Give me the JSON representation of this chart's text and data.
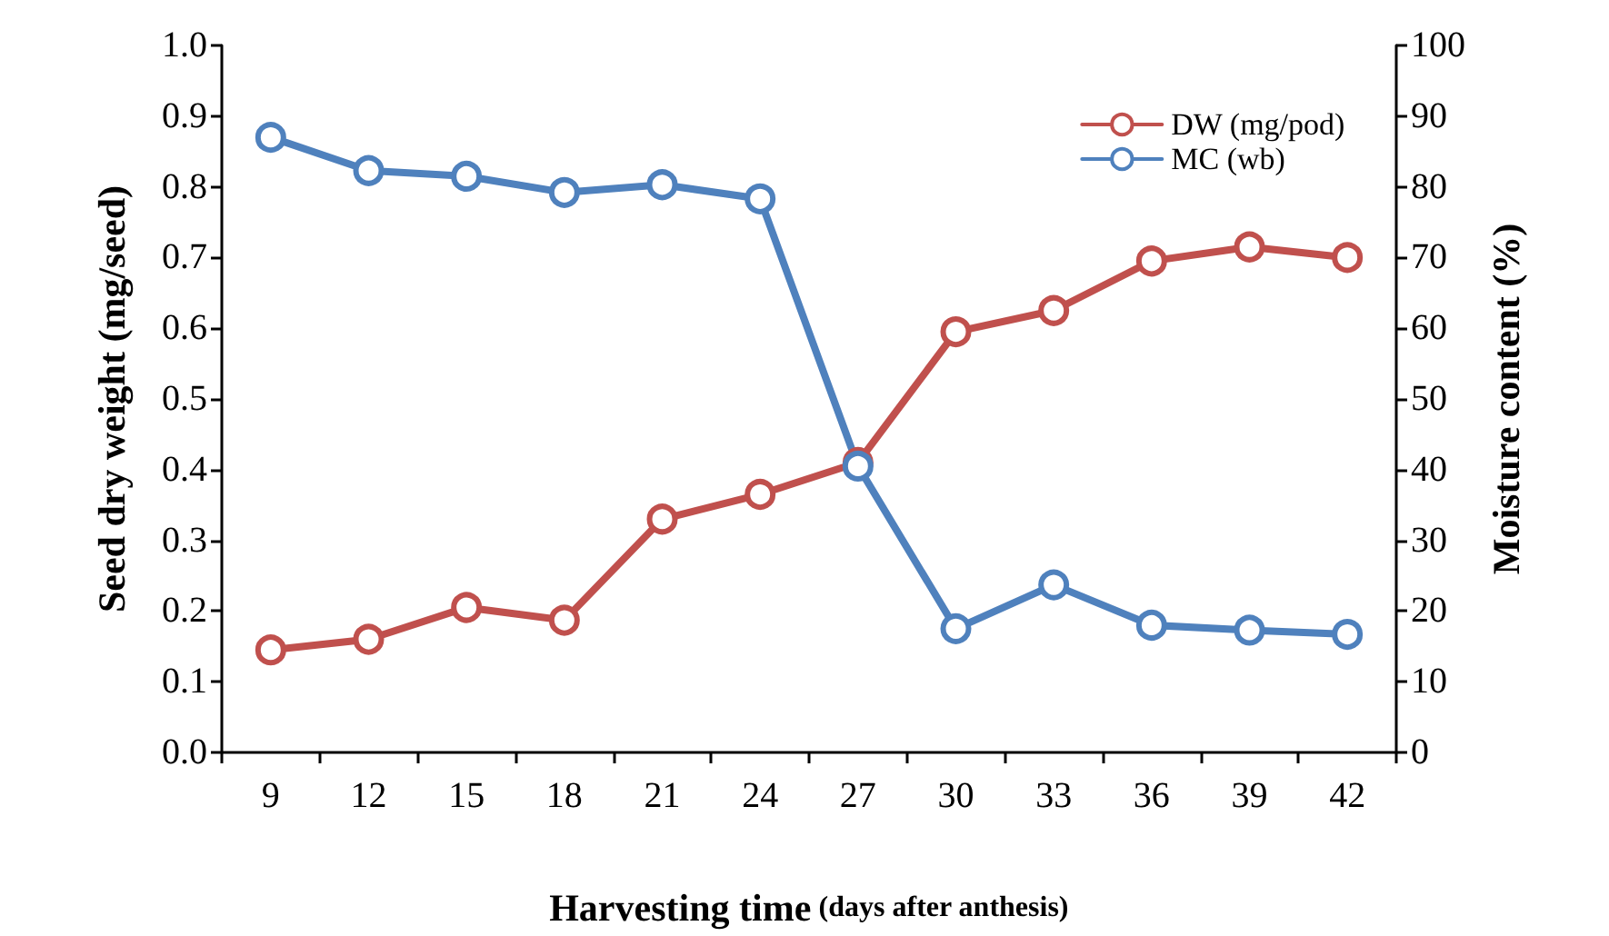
{
  "chart_data": {
    "type": "line",
    "xlabel": "Harvesting time (days after anthesis)",
    "ylabel": "Seed dry weight (mg/seed)",
    "y2label": "Moisture content (%)",
    "categories": [
      "9",
      "12",
      "15",
      "18",
      "21",
      "24",
      "27",
      "30",
      "33",
      "36",
      "39",
      "42"
    ],
    "series": [
      {
        "name": "DW (mg/pod)",
        "color": "#c0504d",
        "values": [
          0.145,
          0.16,
          0.205,
          0.187,
          0.33,
          0.365,
          0.41,
          0.595,
          0.625,
          0.695,
          0.715,
          0.7
        ]
      },
      {
        "name": "MC (wb)",
        "color": "#4f81bd",
        "axis": "y2",
        "values": [
          87,
          82.3,
          81.5,
          79.2,
          80.3,
          78.3,
          40.5,
          17.5,
          23.7,
          18,
          17.3,
          16.7
        ]
      }
    ],
    "ylim": [
      0,
      1
    ],
    "yticks": [
      {
        "value": 0,
        "label": "0.0"
      },
      {
        "value": 0.1,
        "label": "0.1"
      },
      {
        "value": 0.2,
        "label": "0.2"
      },
      {
        "value": 0.3,
        "label": "0.3"
      },
      {
        "value": 0.4,
        "label": "0.4"
      },
      {
        "value": 0.5,
        "label": "0.5"
      },
      {
        "value": 0.6,
        "label": "0.6"
      },
      {
        "value": 0.7,
        "label": "0.7"
      },
      {
        "value": 0.8,
        "label": "0.8"
      },
      {
        "value": 0.9,
        "label": "0.9"
      },
      {
        "value": 1,
        "label": "1.0"
      }
    ],
    "y2lim": [
      0,
      100
    ],
    "y2ticks": [
      0,
      10,
      20,
      30,
      40,
      50,
      60,
      70,
      80,
      90,
      100
    ],
    "grid": false,
    "legend": "top right",
    "marker": "circle",
    "line_style": "solid"
  }
}
